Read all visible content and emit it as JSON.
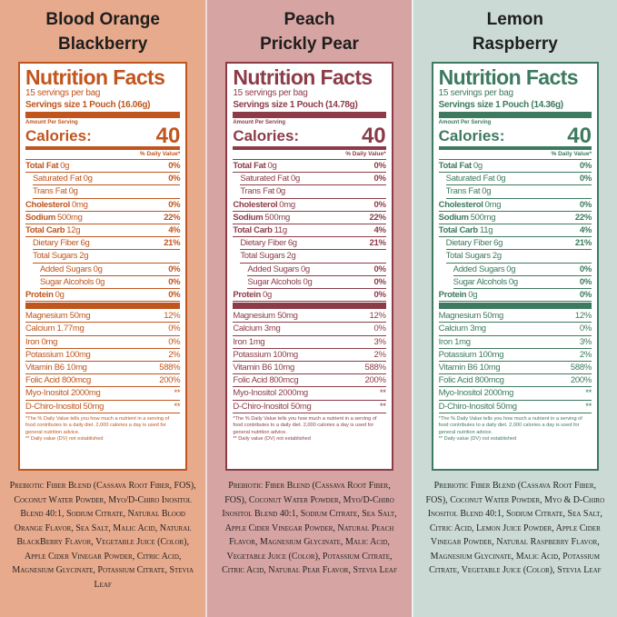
{
  "columns": [
    {
      "title": [
        "Blood Orange",
        "Blackberry"
      ],
      "background": "#e8aa8c",
      "color": "#c0561e",
      "heading": "Nutrition Facts",
      "servings": "15 servings per bag",
      "serving_size": "Servings size 1 Pouch (16.06g)",
      "amount_per_serving": "Amount Per Serving",
      "calories_label": "Calories:",
      "calories": "40",
      "dv_header": "% Daily Value*",
      "rows": [
        {
          "label": "Total Fat",
          "amount": "0g",
          "dv": "0%",
          "indent": 0
        },
        {
          "label": "Saturated Fat",
          "amount": "0g",
          "dv": "0%",
          "indent": 1
        },
        {
          "label": "Trans Fat",
          "amount": "0g",
          "indent": 1
        },
        {
          "label": "Cholesterol",
          "amount": "0mg",
          "dv": "0%",
          "indent": 0
        },
        {
          "label": "Sodium",
          "amount": "500mg",
          "dv": "22%",
          "indent": 0
        },
        {
          "label": "Total Carb",
          "amount": "12g",
          "dv": "4%",
          "indent": 0
        },
        {
          "label": "Dietary Fiber",
          "amount": "6g",
          "dv": "21%",
          "indent": 1
        },
        {
          "label": "Total Sugars",
          "amount": "2g",
          "indent": 1
        },
        {
          "label": "Added Sugars",
          "amount": "0g",
          "dv": "0%",
          "indent": 2
        },
        {
          "label": "Sugar Alcohols",
          "amount": "0g",
          "dv": "0%",
          "indent": 2
        },
        {
          "label": "Protein",
          "amount": "0g",
          "dv": "0%",
          "indent": 0
        }
      ],
      "minerals": [
        {
          "label": "Magnesium 50mg",
          "dv": "12%"
        },
        {
          "label": "Calcium 1.77mg",
          "dv": "0%"
        },
        {
          "label": "Iron 0mg",
          "dv": "0%"
        },
        {
          "label": "Potassium 100mg",
          "dv": "2%"
        },
        {
          "label": "Vitamin B6 10mg",
          "dv": "588%"
        },
        {
          "label": "Folic Acid 800mcg",
          "dv": "200%"
        },
        {
          "label": "Myo-Inositol 2000mg",
          "dv": "**"
        },
        {
          "label": "D-Chiro-Inositol 50mg",
          "dv": "**"
        }
      ],
      "footnote": [
        "*The % Daily Value tells you how much a nutrient in a serving of food contributes to a daily diet. 2,000 calories a day is used for general nutrition advice.",
        "** Daily value (DV) not established"
      ],
      "ingredients": "Prebiotic Fiber Blend (Cassava Root Fiber, FOS), Coconut Water Powder, Myo/D-Chiro Inositol Blend 40:1, Sodium Citrate, Natural Blood Orange Flavor, Sea Salt, Malic Acid, Natural BlackBerry Flavor, Vegetable Juice (Color), Apple Cider Vinegar Powder, Citric Acid, Magnesium Glycinate, Potassium Citrate, Stevia Leaf"
    },
    {
      "title": [
        "Peach",
        "Prickly Pear"
      ],
      "background": "#d6a4a2",
      "color": "#8c3c48",
      "heading": "Nutrition Facts",
      "servings": "15 servings per bag",
      "serving_size": "Servings size 1 Pouch (14.78g)",
      "amount_per_serving": "Amount Per Serving",
      "calories_label": "Calories:",
      "calories": "40",
      "dv_header": "% Daily Value*",
      "rows": [
        {
          "label": "Total Fat",
          "amount": "0g",
          "dv": "0%",
          "indent": 0
        },
        {
          "label": "Saturated Fat",
          "amount": "0g",
          "dv": "0%",
          "indent": 1
        },
        {
          "label": "Trans Fat",
          "amount": "0g",
          "indent": 1
        },
        {
          "label": "Cholesterol",
          "amount": "0mg",
          "dv": "0%",
          "indent": 0
        },
        {
          "label": "Sodium",
          "amount": "500mg",
          "dv": "22%",
          "indent": 0
        },
        {
          "label": "Total Carb",
          "amount": "11g",
          "dv": "4%",
          "indent": 0
        },
        {
          "label": "Dietary Fiber",
          "amount": "6g",
          "dv": "21%",
          "indent": 1
        },
        {
          "label": "Total Sugars",
          "amount": "2g",
          "indent": 1
        },
        {
          "label": "Added Sugars",
          "amount": "0g",
          "dv": "0%",
          "indent": 2
        },
        {
          "label": "Sugar Alcohols",
          "amount": "0g",
          "dv": "0%",
          "indent": 2
        },
        {
          "label": "Protein",
          "amount": "0g",
          "dv": "0%",
          "indent": 0
        }
      ],
      "minerals": [
        {
          "label": "Magnesium 50mg",
          "dv": "12%"
        },
        {
          "label": "Calcium 3mg",
          "dv": "0%"
        },
        {
          "label": "Iron 1mg",
          "dv": "3%"
        },
        {
          "label": "Potassium 100mg",
          "dv": "2%"
        },
        {
          "label": "Vitamin B6 10mg",
          "dv": "588%"
        },
        {
          "label": "Folic Acid 800mcg",
          "dv": "200%"
        },
        {
          "label": "Myo-Inositol 2000mg",
          "dv": "**"
        },
        {
          "label": "D-Chiro-Inositol 50mg",
          "dv": "**"
        }
      ],
      "footnote": [
        "*The % Daily Value tells you how much a nutrient in a serving of food contributes to a daily diet. 2,000 calories a day is used for general nutrition advice.",
        "** Daily value (DV) not established"
      ],
      "ingredients": "Prebiotic Fiber Blend (Cassava Root Fiber, FOS), Coconut Water Powder, Myo/D-Chiro Inositol Blend 40:1, Sodium Citrate, Sea Salt, Apple Cider Vinegar Powder, Natural Peach Flavor, Magnesium Glycinate, Malic Acid, Vegetable Juice (Color), Potassium Citrate, Citric Acid, Natural Pear Flavor, Stevia Leaf"
    },
    {
      "title": [
        "Lemon",
        "Raspberry"
      ],
      "background": "#cbdad4",
      "color": "#3d7a5f",
      "heading": "Nutrition Facts",
      "servings": "15 servings per bag",
      "serving_size": "Servings size 1 Pouch (14.36g)",
      "amount_per_serving": "Amount Per Serving",
      "calories_label": "Calories:",
      "calories": "40",
      "dv_header": "% Daily Value*",
      "rows": [
        {
          "label": "Total Fat",
          "amount": "0g",
          "dv": "0%",
          "indent": 0
        },
        {
          "label": "Saturated Fat",
          "amount": "0g",
          "dv": "0%",
          "indent": 1
        },
        {
          "label": "Trans Fat",
          "amount": "0g",
          "indent": 1
        },
        {
          "label": "Cholesterol",
          "amount": "0mg",
          "dv": "0%",
          "indent": 0
        },
        {
          "label": "Sodium",
          "amount": "500mg",
          "dv": "22%",
          "indent": 0
        },
        {
          "label": "Total Carb",
          "amount": "11g",
          "dv": "4%",
          "indent": 0
        },
        {
          "label": "Dietary Fiber",
          "amount": "6g",
          "dv": "21%",
          "indent": 1
        },
        {
          "label": "Total Sugars",
          "amount": "2g",
          "indent": 1
        },
        {
          "label": "Added Sugars",
          "amount": "0g",
          "dv": "0%",
          "indent": 2
        },
        {
          "label": "Sugar Alcohols",
          "amount": "0g",
          "dv": "0%",
          "indent": 2
        },
        {
          "label": "Protein",
          "amount": "0g",
          "dv": "0%",
          "indent": 0
        }
      ],
      "minerals": [
        {
          "label": "Magnesium 50mg",
          "dv": "12%"
        },
        {
          "label": "Calcium 3mg",
          "dv": "0%"
        },
        {
          "label": "Iron 1mg",
          "dv": "3%"
        },
        {
          "label": "Potassium 100mg",
          "dv": "2%"
        },
        {
          "label": "Vitamin B6 10mg",
          "dv": "588%"
        },
        {
          "label": "Folic Acid 800mcg",
          "dv": "200%"
        },
        {
          "label": "Myo-Inositol 2000mg",
          "dv": "**"
        },
        {
          "label": "D-Chiro-Inositol 50mg",
          "dv": "**"
        }
      ],
      "footnote": [
        "*The % Daily Value tells you how much a nutrient in a serving of food contributes to a daily diet. 2,000 calories a day is used for general nutrition advice.",
        "** Daily value (DV) not established"
      ],
      "ingredients": "Prebiotic Fiber Blend (Cassava Root Fiber, FOS), Coconut Water Powder, Myo & D-Chiro Inositol Blend 40:1, Sodium Citrate, Sea Salt, Citric Acid, Lemon Juice Powder, Apple Cider Vinegar Powder, Natural Raspberry Flavor, Magnesium Glycinate, Malic Acid, Potassium Citrate, Vegetable Juice (Color), Stevia Leaf"
    }
  ]
}
